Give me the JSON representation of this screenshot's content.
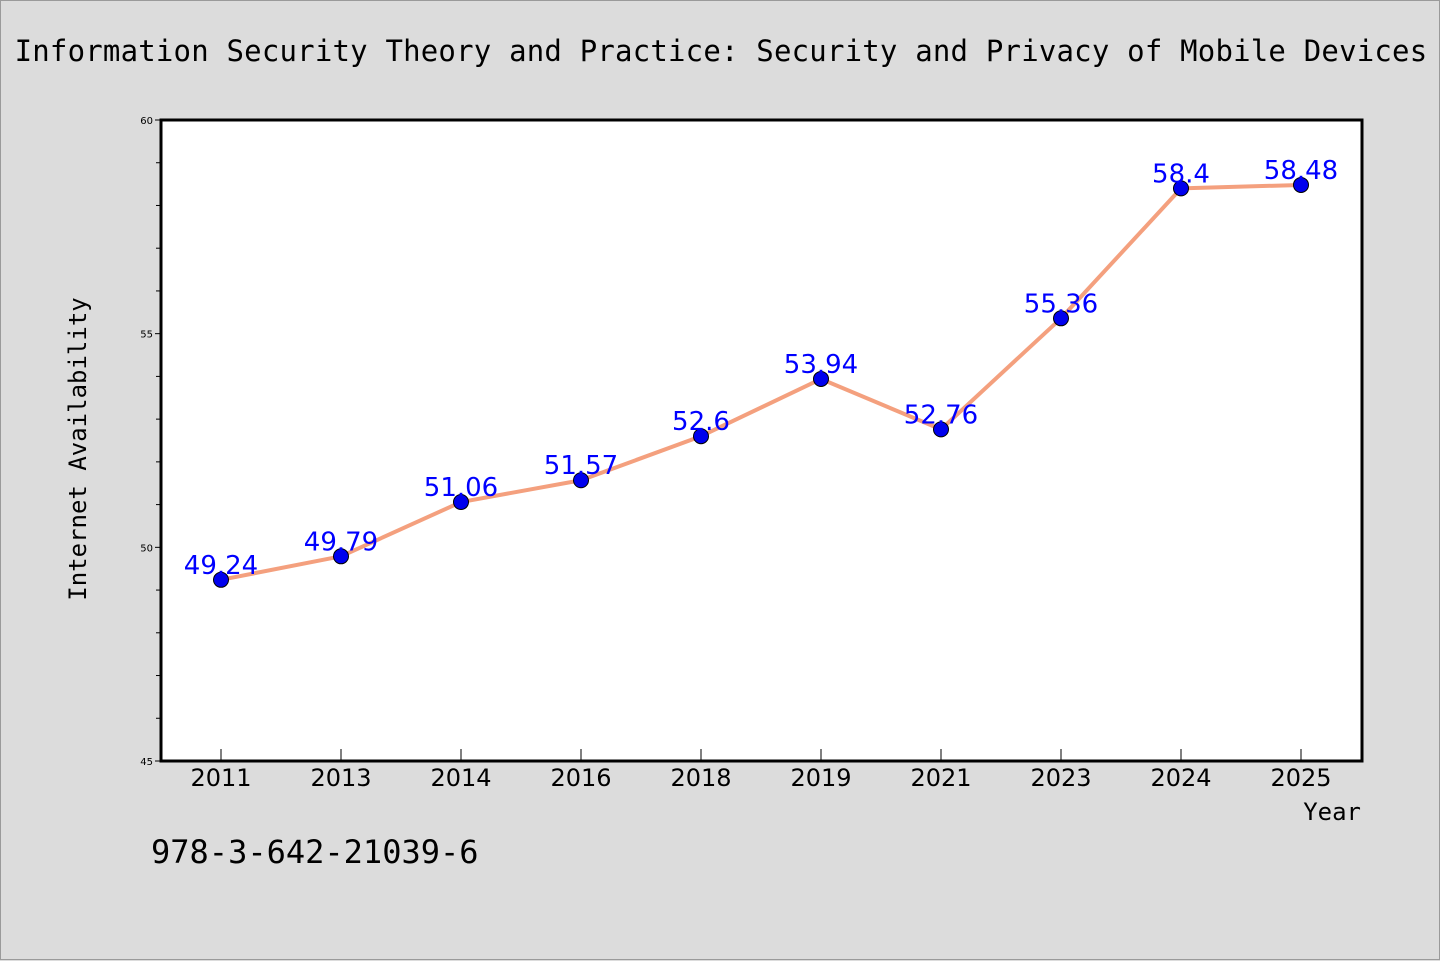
{
  "colors": {
    "background": "#dcdcdc",
    "plot_background": "#ffffff",
    "line": "#f4a07e",
    "marker": "#0000ee",
    "data_label": "#0000ff"
  },
  "isbn": "978-3-642-21039-6",
  "chart_data": {
    "type": "line",
    "title": "Information Security Theory and Practice: Security and Privacy of Mobile Devices",
    "xlabel": "Year",
    "ylabel": "Internet Availability",
    "categories": [
      "2011",
      "2013",
      "2014",
      "2016",
      "2018",
      "2019",
      "2021",
      "2023",
      "2024",
      "2025"
    ],
    "series": [
      {
        "values": [
          49.24,
          49.79,
          51.06,
          51.57,
          52.6,
          53.94,
          52.76,
          55.36,
          58.4,
          58.48
        ]
      }
    ],
    "data_labels": [
      "49.24",
      "49.79",
      "51.06",
      "51.57",
      "52.6",
      "53.94",
      "52.76",
      "55.36",
      "58.4",
      "58.48"
    ],
    "yticks": [
      45,
      50,
      55,
      60
    ],
    "ylim": [
      45,
      60
    ],
    "grid": false,
    "legend": "none"
  }
}
